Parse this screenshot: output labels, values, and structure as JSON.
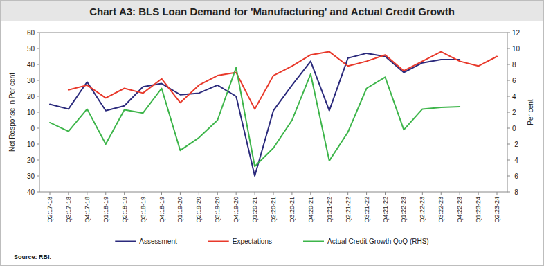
{
  "chart_data": {
    "type": "line",
    "title": "Chart A3: BLS Loan Demand for 'Manufacturing' and Actual Credit Growth",
    "y_label": "Net Response in Per cent",
    "y2_label": "Per cent",
    "source": "Source: RBI.",
    "categories": [
      "Q2:17-18",
      "Q3:17-18",
      "Q4:17-18",
      "Q1:18-19",
      "Q2:18-19",
      "Q3:18-19",
      "Q4:18-19",
      "Q1:19-20",
      "Q2:19-20",
      "Q3:19-20",
      "Q4:19-20",
      "Q1:20-21",
      "Q2:20-21",
      "Q3:20-21",
      "Q4:20-21",
      "Q1:21-22",
      "Q2:21-22",
      "Q3:21-22",
      "Q4:21-22",
      "Q1:22-23",
      "Q2:22-23",
      "Q3:22-23",
      "Q4:22-23",
      "Q1:23-24",
      "Q2:23-24"
    ],
    "series": [
      {
        "name": "Assessment",
        "color": "#2b2a7c",
        "line_style": "solid",
        "values": [
          15,
          12,
          29,
          11,
          14,
          26,
          28,
          21,
          22,
          27,
          20,
          -30,
          11,
          27,
          42,
          11,
          44,
          47,
          45,
          35,
          41,
          43,
          43,
          null,
          null
        ]
      },
      {
        "name": "Expectations",
        "color": "#e8392b",
        "line_style": "solid",
        "values": [
          null,
          24,
          27,
          19,
          25,
          22,
          31,
          16,
          27,
          33,
          35,
          12,
          33,
          39,
          46,
          48,
          39,
          42,
          46,
          36,
          42,
          48,
          42,
          39,
          45
        ]
      },
      {
        "name": "Actual Credit Growth QoQ (RHS)",
        "color": "#3db54a",
        "line_style": "solid",
        "axis": "y2",
        "values": [
          0.7,
          -0.4,
          2.4,
          -2.0,
          2.3,
          1.9,
          5.0,
          -2.8,
          -1.2,
          1.0,
          7.6,
          -4.8,
          -2.5,
          1.0,
          6.8,
          -4.1,
          -0.5,
          5.0,
          6.4,
          -0.2,
          2.4,
          2.6,
          2.7,
          null,
          null
        ]
      }
    ],
    "ylim": [
      -40,
      60
    ],
    "yticks": [
      -40,
      -30,
      -20,
      -10,
      0,
      10,
      20,
      30,
      40,
      50,
      60
    ],
    "y2lim": [
      -8,
      12
    ],
    "y2ticks": [
      -8,
      -6,
      -4,
      -2,
      0,
      2,
      4,
      6,
      8,
      10,
      12
    ],
    "grid": false,
    "legend": "bottom"
  }
}
